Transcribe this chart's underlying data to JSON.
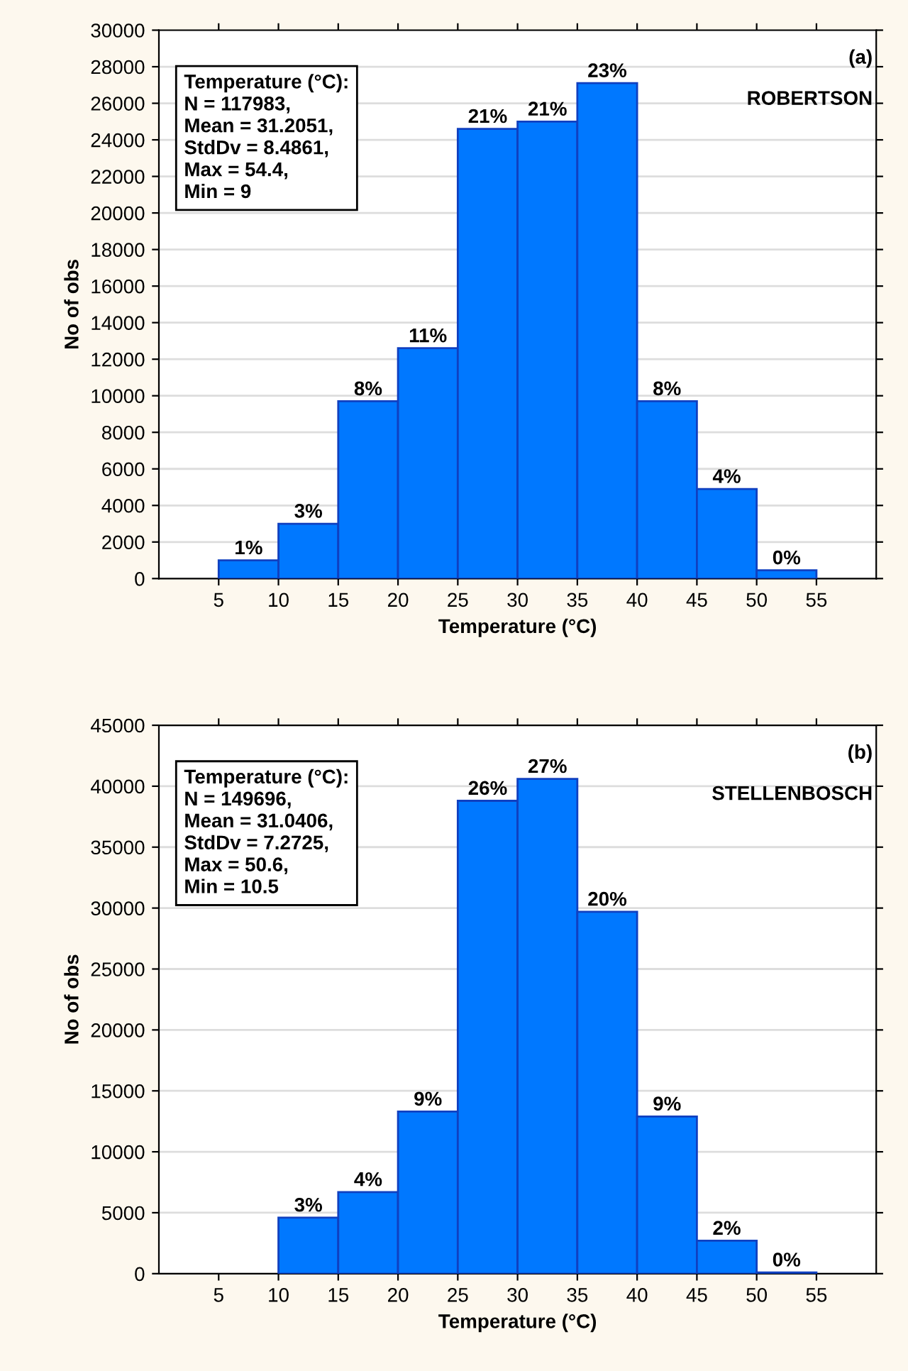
{
  "chart_data": [
    {
      "type": "histogram",
      "bins": [
        5,
        10,
        15,
        20,
        25,
        30,
        35,
        40,
        45,
        50,
        55
      ],
      "values": [
        1000,
        3000,
        9700,
        12600,
        24600,
        25000,
        27100,
        9700,
        4900,
        450
      ],
      "color": "#0078ff",
      "xlim": [
        0,
        60
      ],
      "xticks": [
        5,
        10,
        15,
        20,
        25,
        30,
        35,
        40,
        45,
        50,
        55
      ],
      "ylim": [
        0,
        30000
      ],
      "yticks": [
        0,
        2000,
        4000,
        6000,
        8000,
        10000,
        12000,
        14000,
        16000,
        18000,
        20000,
        22000,
        24000,
        26000,
        28000,
        30000
      ],
      "xlabel": "Temperature (°C)",
      "ylabel": "No of obs",
      "grid": "y",
      "annotations": [
        "Temperature (°C):\nN = 117983,\nMean = 31.2051,\nStdDv = 8.4861,\nMax = 54.4,\nMin = 9",
        "(a)",
        "ROBERTSON",
        {
          "text": "1%",
          "x": 7.5,
          "y": 1000
        },
        {
          "text": "3%",
          "x": 12.5,
          "y": 3000
        },
        {
          "text": "8%",
          "x": 17.5,
          "y": 9700
        },
        {
          "text": "11%",
          "x": 22.5,
          "y": 12600
        },
        {
          "text": "21%",
          "x": 27.5,
          "y": 24600
        },
        {
          "text": "21%",
          "x": 32.5,
          "y": 25000
        },
        {
          "text": "23%",
          "x": 37.5,
          "y": 27100
        },
        {
          "text": "8%",
          "x": 42.5,
          "y": 9700
        },
        {
          "text": "4%",
          "x": 47.5,
          "y": 4900
        },
        {
          "text": "0%",
          "x": 52.5,
          "y": 450
        }
      ]
    },
    {
      "type": "histogram",
      "bins": [
        5,
        10,
        15,
        20,
        25,
        30,
        35,
        40,
        45,
        50,
        55
      ],
      "values": [
        0,
        4600,
        6700,
        13300,
        38800,
        40600,
        29700,
        12900,
        2700,
        100
      ],
      "color": "#0078ff",
      "xlim": [
        0,
        60
      ],
      "xticks": [
        5,
        10,
        15,
        20,
        25,
        30,
        35,
        40,
        45,
        50,
        55
      ],
      "ylim": [
        0,
        45000
      ],
      "yticks": [
        0,
        5000,
        10000,
        15000,
        20000,
        25000,
        30000,
        35000,
        40000,
        45000
      ],
      "xlabel": "Temperature (°C)",
      "ylabel": "No of obs",
      "grid": "y",
      "annotations": [
        "Temperature (°C):\nN = 149696,\nMean = 31.0406,\nStdDv = 7.2725,\nMax = 50.6,\nMin = 10.5",
        "(b)",
        "STELLENBOSCH",
        {
          "text": "3%",
          "x": 12.5,
          "y": 4600
        },
        {
          "text": "4%",
          "x": 17.5,
          "y": 6700
        },
        {
          "text": "9%",
          "x": 22.5,
          "y": 13300
        },
        {
          "text": "26%",
          "x": 27.5,
          "y": 38800
        },
        {
          "text": "27%",
          "x": 32.5,
          "y": 40600
        },
        {
          "text": "20%",
          "x": 37.5,
          "y": 29700
        },
        {
          "text": "9%",
          "x": 42.5,
          "y": 12900
        },
        {
          "text": "2%",
          "x": 47.5,
          "y": 2700
        },
        {
          "text": "0%",
          "x": 52.5,
          "y": 100
        }
      ]
    }
  ]
}
